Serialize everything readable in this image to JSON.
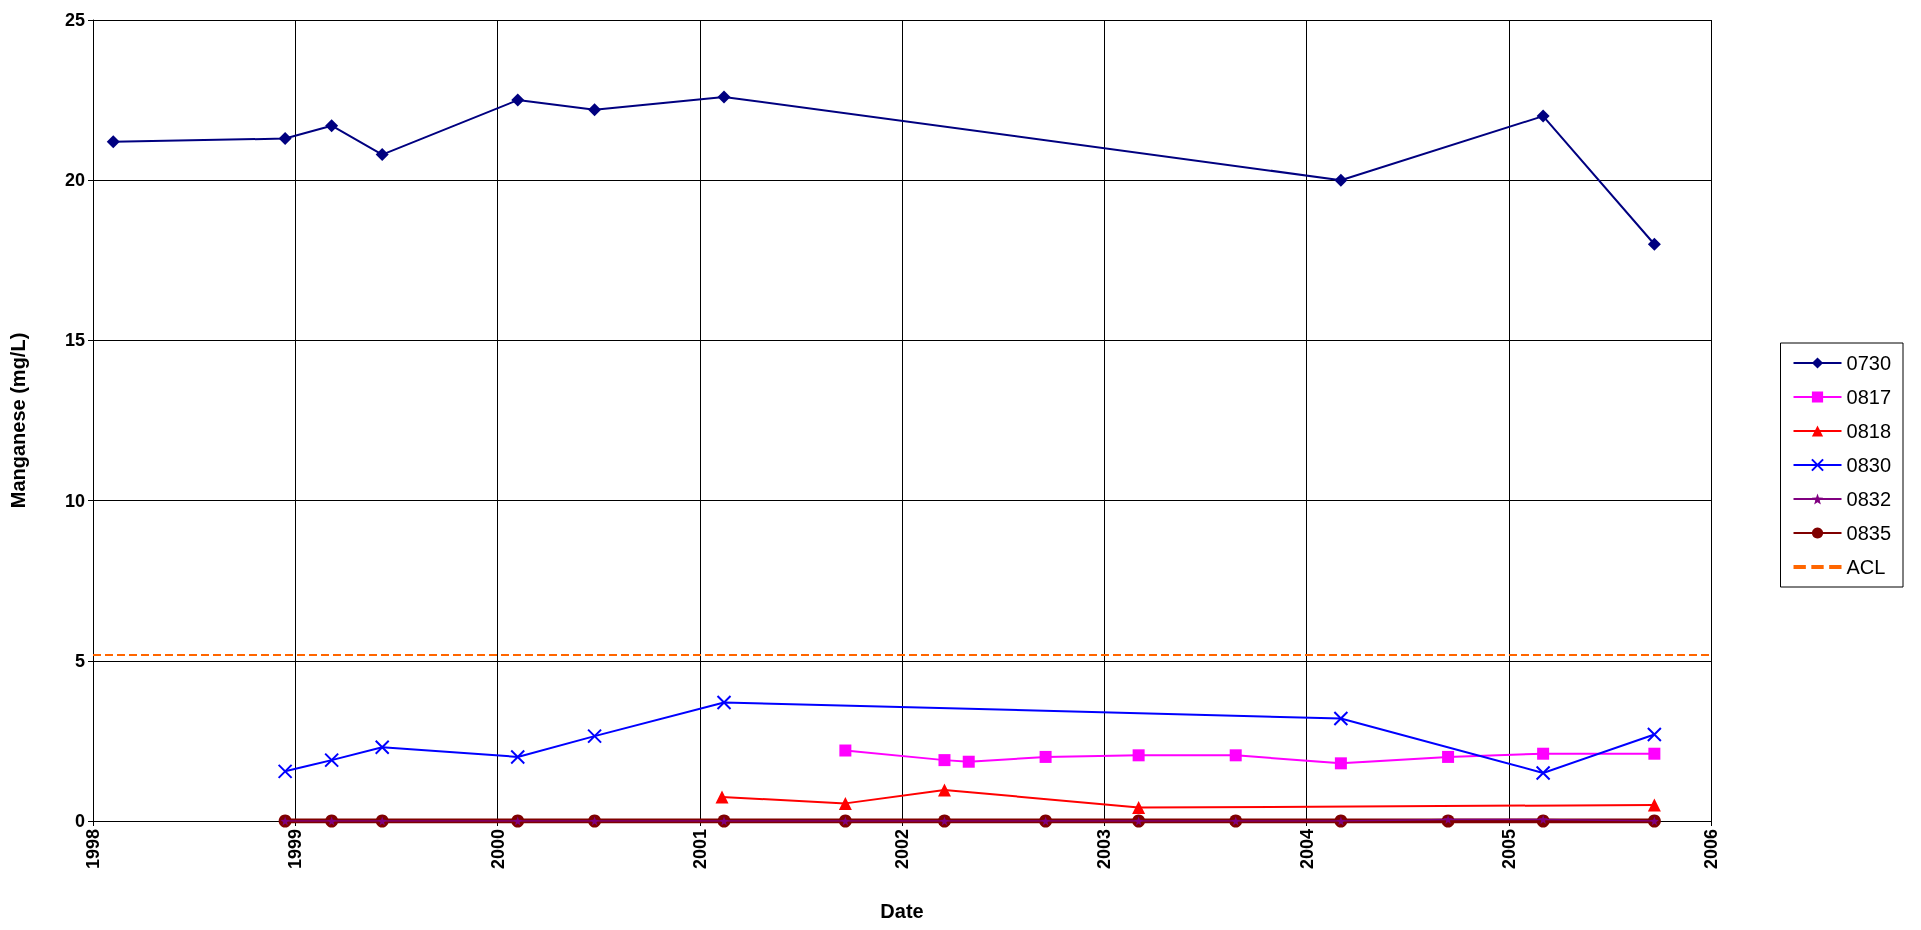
{
  "chart_data": {
    "type": "line",
    "xlabel": "Date",
    "ylabel": "Manganese (mg/L)",
    "xlim": [
      1998,
      2006
    ],
    "xticks": [
      1998,
      1999,
      2000,
      2001,
      2002,
      2003,
      2004,
      2005,
      2006
    ],
    "ylim": [
      0,
      25
    ],
    "yticks": [
      0,
      5,
      10,
      15,
      20,
      25
    ],
    "grid": true,
    "legend": "right",
    "series": [
      {
        "name": "0730",
        "color": "#000080",
        "marker": "diamond",
        "x": [
          1998.1,
          1998.95,
          1999.18,
          1999.43,
          2000.1,
          2000.48,
          2001.12,
          2004.17,
          2005.17,
          2005.72
        ],
        "values": [
          21.2,
          21.3,
          21.7,
          20.8,
          22.5,
          22.2,
          22.6,
          20.0,
          22.0,
          18.0
        ]
      },
      {
        "name": "0817",
        "color": "#ff00ff",
        "marker": "square",
        "x": [
          2001.72,
          2002.21,
          2002.33,
          2002.71,
          2003.17,
          2003.65,
          2004.17,
          2004.7,
          2005.17,
          2005.72
        ],
        "values": [
          2.2,
          1.9,
          1.85,
          2.0,
          2.05,
          2.05,
          1.8,
          2.0,
          2.1,
          2.1
        ]
      },
      {
        "name": "0818",
        "color": "#ff0000",
        "marker": "triangle",
        "x": [
          2001.11,
          2001.72,
          2002.21,
          2003.17,
          2005.72
        ],
        "values": [
          0.75,
          0.55,
          0.97,
          0.42,
          0.5
        ]
      },
      {
        "name": "0830",
        "color": "#0000ff",
        "marker": "cross",
        "x": [
          1998.95,
          1999.18,
          1999.43,
          2000.1,
          2000.48,
          2001.12,
          2004.17,
          2005.17,
          2005.72
        ],
        "values": [
          1.55,
          1.9,
          2.3,
          2.0,
          2.65,
          3.7,
          3.2,
          1.5,
          2.7
        ]
      },
      {
        "name": "0832",
        "color": "#800080",
        "marker": "star",
        "x": [
          1998.95,
          1999.18,
          1999.43,
          2000.1,
          2000.48,
          2001.12,
          2001.72,
          2002.21,
          2002.71,
          2003.17,
          2003.65,
          2004.17,
          2004.7,
          2005.17,
          2005.72
        ],
        "values": [
          0,
          0,
          0,
          0,
          0,
          0,
          0,
          0,
          0,
          0,
          0,
          0,
          0.05,
          0.05,
          0
        ]
      },
      {
        "name": "0835",
        "color": "#800000",
        "marker": "circle",
        "x": [
          1998.95,
          1999.18,
          1999.43,
          2000.1,
          2000.48,
          2001.12,
          2001.72,
          2002.21,
          2002.71,
          2003.17,
          2003.65,
          2004.17,
          2004.7,
          2005.17,
          2005.72
        ],
        "values": [
          0,
          0,
          0,
          0,
          0,
          0,
          0,
          0,
          0,
          0,
          0,
          0,
          0,
          0,
          0
        ]
      }
    ],
    "ref_lines": [
      {
        "axis": "y",
        "value": 5.2,
        "label": "ACL",
        "color": "#ff6600",
        "line_style": "dashed"
      }
    ]
  }
}
